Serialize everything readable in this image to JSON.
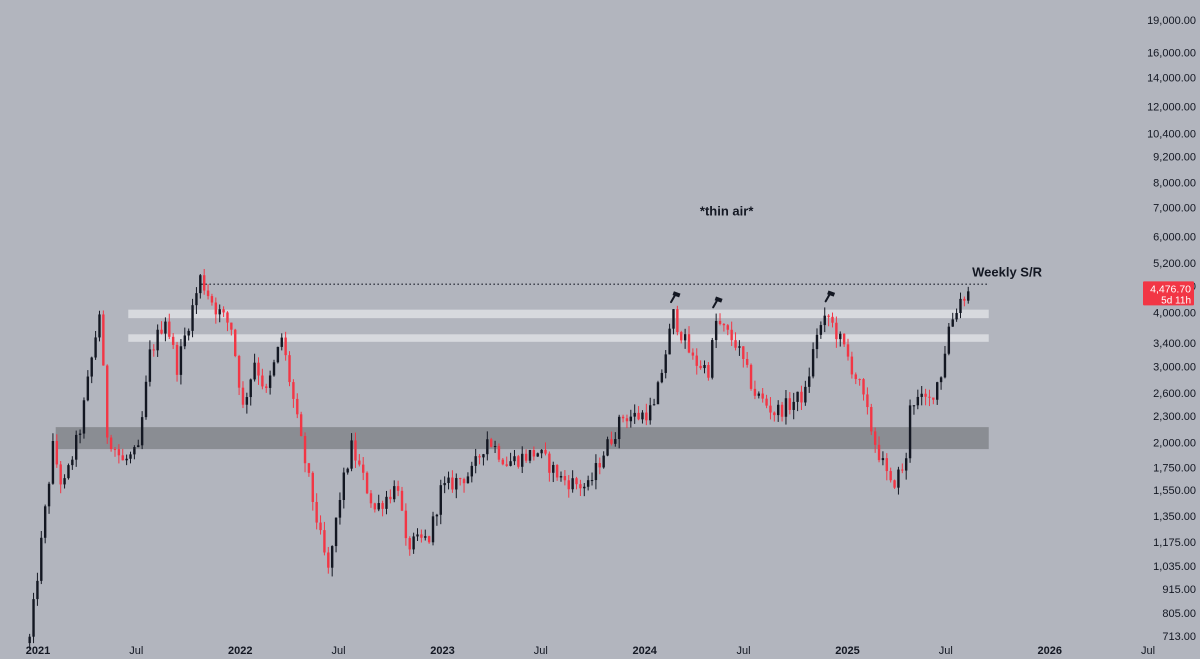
{
  "chart_data": {
    "type": "candlestick",
    "y_scale": "log",
    "y_ticks": [
      "19,000.00",
      "16,000.00",
      "14,000.00",
      "12,000.00",
      "10,400.00",
      "9,200.00",
      "8,000.00",
      "7,000.00",
      "6,000.00",
      "5,200.00",
      "4,600.00",
      "4,000.00",
      "3,400.00",
      "3,000.00",
      "2,600.00",
      "2,300.00",
      "2,000.00",
      "1,750.00",
      "1,550.00",
      "1,350.00",
      "1,175.00",
      "1,035.00",
      "915.00",
      "805.00",
      "713.00"
    ],
    "y_tick_values": [
      19000,
      16000,
      14000,
      12000,
      10400,
      9200,
      8000,
      7000,
      6000,
      5200,
      4600,
      4000,
      3400,
      3000,
      2600,
      2300,
      2000,
      1750,
      1550,
      1350,
      1175,
      1035,
      915,
      805,
      713
    ],
    "x_ticks": [
      {
        "label": "2021",
        "date": "2021-01-01"
      },
      {
        "label": "Jul",
        "date": "2021-07-01"
      },
      {
        "label": "2022",
        "date": "2022-01-01"
      },
      {
        "label": "Jul",
        "date": "2022-07-01"
      },
      {
        "label": "2023",
        "date": "2023-01-01"
      },
      {
        "label": "Jul",
        "date": "2023-07-01"
      },
      {
        "label": "2024",
        "date": "2024-01-01"
      },
      {
        "label": "Jul",
        "date": "2024-07-01"
      },
      {
        "label": "2025",
        "date": "2025-01-01"
      },
      {
        "label": "Jul",
        "date": "2025-07-01"
      },
      {
        "label": "2026",
        "date": "2026-01-01"
      },
      {
        "label": "Jul",
        "date": "2026-07-01"
      }
    ],
    "x_range": [
      "2021-01-01",
      "2026-07-01"
    ],
    "y_range": [
      690,
      20500
    ],
    "current_price": {
      "value": 4476.7,
      "label": "4,476.70",
      "countdown": "5d 11h"
    },
    "annotations": [
      {
        "text": "*thin air*",
        "date": "2024-06-15",
        "price": 6700
      },
      {
        "text": "Weekly S/R",
        "date": "2025-09-01",
        "price": 4850
      }
    ],
    "resistance_line": {
      "price": 4650,
      "from": "2021-11-10",
      "to": "2025-10-01",
      "style": "dotted"
    },
    "zones": [
      {
        "name": "upper-zone-1",
        "low": 3880,
        "high": 4060,
        "from": "2021-07-01",
        "to": "2025-10-01",
        "color": "#d7d9de"
      },
      {
        "name": "upper-zone-2",
        "low": 3420,
        "high": 3560,
        "from": "2021-07-01",
        "to": "2025-10-01",
        "color": "#d7d9de"
      },
      {
        "name": "major-support-zone",
        "low": 1930,
        "high": 2170,
        "from": "2021-02-20",
        "to": "2025-10-01",
        "color": "#8a8d93"
      }
    ],
    "tops": [
      {
        "date": "2024-03-12",
        "price": 4093
      },
      {
        "date": "2024-05-27",
        "price": 3980
      },
      {
        "date": "2024-12-16",
        "price": 4110
      }
    ],
    "key_points": [
      {
        "date": "2021-01-04",
        "price": 700
      },
      {
        "date": "2021-02-15",
        "price": 1950
      },
      {
        "date": "2021-03-05",
        "price": 1550
      },
      {
        "date": "2021-04-05",
        "price": 2150
      },
      {
        "date": "2021-05-10",
        "price": 4000
      },
      {
        "date": "2021-05-24",
        "price": 2100
      },
      {
        "date": "2021-06-21",
        "price": 1800
      },
      {
        "date": "2021-07-19",
        "price": 1900
      },
      {
        "date": "2021-08-09",
        "price": 3200
      },
      {
        "date": "2021-09-06",
        "price": 3900
      },
      {
        "date": "2021-09-27",
        "price": 3000
      },
      {
        "date": "2021-11-08",
        "price": 4800
      },
      {
        "date": "2021-12-06",
        "price": 4100
      },
      {
        "date": "2022-01-03",
        "price": 3700
      },
      {
        "date": "2022-01-24",
        "price": 2400
      },
      {
        "date": "2022-02-14",
        "price": 3100
      },
      {
        "date": "2022-03-07",
        "price": 2600
      },
      {
        "date": "2022-04-04",
        "price": 3500
      },
      {
        "date": "2022-05-09",
        "price": 2000
      },
      {
        "date": "2022-06-13",
        "price": 1200
      },
      {
        "date": "2022-06-27",
        "price": 1000
      },
      {
        "date": "2022-07-18",
        "price": 1500
      },
      {
        "date": "2022-08-08",
        "price": 1950
      },
      {
        "date": "2022-09-19",
        "price": 1400
      },
      {
        "date": "2022-10-31",
        "price": 1600
      },
      {
        "date": "2022-11-14",
        "price": 1150
      },
      {
        "date": "2022-12-26",
        "price": 1200
      },
      {
        "date": "2023-01-16",
        "price": 1550
      },
      {
        "date": "2023-02-20",
        "price": 1650
      },
      {
        "date": "2023-03-13",
        "price": 1700
      },
      {
        "date": "2023-04-10",
        "price": 2050
      },
      {
        "date": "2023-05-15",
        "price": 1800
      },
      {
        "date": "2023-07-10",
        "price": 1900
      },
      {
        "date": "2023-08-21",
        "price": 1650
      },
      {
        "date": "2023-10-09",
        "price": 1570
      },
      {
        "date": "2023-11-06",
        "price": 1900
      },
      {
        "date": "2023-12-11",
        "price": 2300
      },
      {
        "date": "2024-01-08",
        "price": 2300
      },
      {
        "date": "2024-02-05",
        "price": 2400
      },
      {
        "date": "2024-03-11",
        "price": 3950
      },
      {
        "date": "2024-04-15",
        "price": 3100
      },
      {
        "date": "2024-05-13",
        "price": 2950
      },
      {
        "date": "2024-05-27",
        "price": 3800
      },
      {
        "date": "2024-07-01",
        "price": 3400
      },
      {
        "date": "2024-08-05",
        "price": 2600
      },
      {
        "date": "2024-09-09",
        "price": 2350
      },
      {
        "date": "2024-10-07",
        "price": 2450
      },
      {
        "date": "2024-11-04",
        "price": 2600
      },
      {
        "date": "2024-11-25",
        "price": 3600
      },
      {
        "date": "2024-12-16",
        "price": 3900
      },
      {
        "date": "2025-01-13",
        "price": 3300
      },
      {
        "date": "2025-02-10",
        "price": 2700
      },
      {
        "date": "2025-03-10",
        "price": 2000
      },
      {
        "date": "2025-04-07",
        "price": 1580
      },
      {
        "date": "2025-05-05",
        "price": 1800
      },
      {
        "date": "2025-05-12",
        "price": 2500
      },
      {
        "date": "2025-06-16",
        "price": 2500
      },
      {
        "date": "2025-07-07",
        "price": 2900
      },
      {
        "date": "2025-07-21",
        "price": 3700
      },
      {
        "date": "2025-08-11",
        "price": 4300
      },
      {
        "date": "2025-08-25",
        "price": 4476.7
      }
    ],
    "colors": {
      "up": "#131722",
      "down": "#f23645",
      "background": "#b2b5be",
      "axis_text": "#131722"
    }
  }
}
